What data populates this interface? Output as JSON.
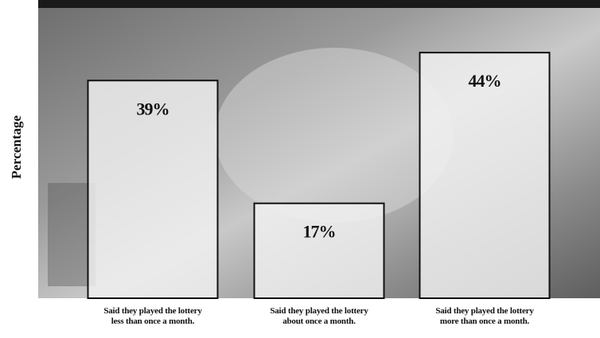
{
  "chart_data": {
    "type": "bar",
    "y_label": "Percentage",
    "categories": [
      "Said they played the lottery\nless than once a month.",
      "Said they played the lottery\nabout once a month.",
      "Said they played the lottery\nmore than once a month."
    ],
    "values": [
      39,
      17,
      44
    ],
    "value_labels": [
      "39%",
      "17%",
      "44%"
    ],
    "ylim": [
      0,
      52
    ],
    "color": "#f2f2f2"
  }
}
